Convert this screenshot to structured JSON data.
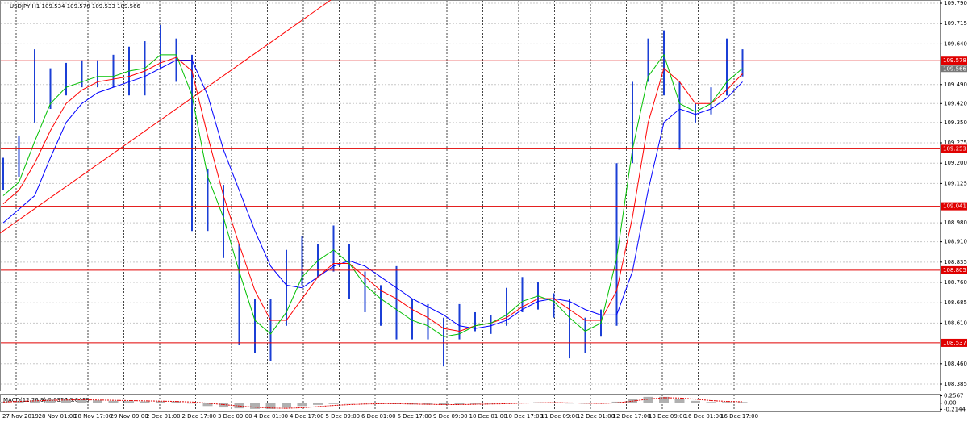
{
  "chart_data": {
    "type": "price",
    "title": "USDJPY,H1  109.534 109.570 109.533 109.566",
    "bar_color": "#1b3fd6",
    "ylim": [
      108.385,
      109.79
    ],
    "yticks": [
      {
        "value": 109.79,
        "label": "109.790"
      },
      109.715,
      {
        "value": 109.64,
        "label": "109.640"
      },
      {
        "value": 109.49,
        "label": "109.490"
      },
      {
        "value": 109.42,
        "label": "109.420"
      },
      {
        "value": 109.35,
        "label": "109.350"
      },
      109.275,
      {
        "value": 109.2,
        "label": "109.200"
      },
      109.125,
      {
        "value": 108.98,
        "label": "108.980"
      },
      {
        "value": 108.91,
        "label": "108.910"
      },
      108.835,
      {
        "value": 108.76,
        "label": "108.760"
      },
      108.685,
      {
        "value": 108.61,
        "label": "108.610"
      },
      {
        "value": 108.46,
        "label": "108.460"
      },
      108.385
    ],
    "grid": true,
    "time_labels": [
      "27 Nov 2019",
      "28 Nov 01:00",
      "28 Nov 17:00",
      "29 Nov 09:00",
      "2 Dec 01:00",
      "2 Dec 17:00",
      "3 Dec 09:00",
      "4 Dec 01:00",
      "4 Dec 17:00",
      "5 Dec 09:00",
      "6 Dec 01:00",
      "6 Dec 17:00",
      "9 Dec 09:00",
      "10 Dec 01:00",
      "10 Dec 17:00",
      "11 Dec 09:00",
      "12 Dec 01:00",
      "12 Dec 17:00",
      "13 Dec 09:00",
      "16 Dec 01:00",
      "16 Dec 17:00"
    ],
    "high": [
      109.22,
      109.3,
      109.62,
      109.55,
      109.57,
      109.58,
      109.58,
      109.6,
      109.63,
      109.65,
      109.71,
      109.66,
      109.6,
      109.18,
      109.12,
      108.9,
      108.7,
      108.7,
      108.88,
      108.93,
      108.9,
      108.97,
      108.9,
      108.8,
      108.75,
      108.82,
      108.7,
      108.68,
      108.63,
      108.68,
      108.65,
      108.64,
      108.74,
      108.78,
      108.76,
      108.72,
      108.7,
      108.63,
      108.66,
      109.2,
      109.5,
      109.66,
      109.69,
      109.5,
      109.42,
      109.48,
      109.66,
      109.62
    ],
    "low": [
      109.1,
      109.15,
      109.35,
      109.4,
      109.45,
      109.48,
      109.48,
      109.48,
      109.45,
      109.45,
      109.55,
      109.5,
      108.95,
      108.95,
      108.85,
      108.53,
      108.5,
      108.47,
      108.6,
      108.75,
      108.78,
      108.8,
      108.7,
      108.65,
      108.6,
      108.55,
      108.55,
      108.55,
      108.45,
      108.55,
      108.58,
      108.57,
      108.6,
      108.65,
      108.66,
      108.63,
      108.48,
      108.5,
      108.56,
      108.6,
      109.2,
      109.5,
      109.45,
      109.25,
      109.35,
      109.38,
      109.45,
      109.52
    ],
    "ma_fast": {
      "color": "#00c000",
      "values": [
        109.08,
        109.13,
        109.28,
        109.42,
        109.48,
        109.5,
        109.52,
        109.52,
        109.54,
        109.55,
        109.6,
        109.6,
        109.45,
        109.15,
        109.0,
        108.8,
        108.62,
        108.57,
        108.65,
        108.78,
        108.84,
        108.88,
        108.83,
        108.75,
        108.7,
        108.66,
        108.62,
        108.6,
        108.56,
        108.57,
        108.6,
        108.61,
        108.64,
        108.69,
        108.71,
        108.69,
        108.63,
        108.58,
        108.61,
        108.85,
        109.25,
        109.52,
        109.6,
        109.42,
        109.39,
        109.42,
        109.5,
        109.55
      ]
    },
    "ma_mid": {
      "color": "#ff0000",
      "values": [
        109.05,
        109.1,
        109.2,
        109.32,
        109.42,
        109.47,
        109.5,
        109.51,
        109.52,
        109.54,
        109.57,
        109.59,
        109.54,
        109.3,
        109.08,
        108.9,
        108.73,
        108.62,
        108.62,
        108.7,
        108.78,
        108.83,
        108.83,
        108.78,
        108.73,
        108.7,
        108.66,
        108.63,
        108.59,
        108.58,
        108.6,
        108.61,
        108.63,
        108.67,
        108.7,
        108.7,
        108.66,
        108.62,
        108.62,
        108.73,
        109.0,
        109.35,
        109.55,
        109.5,
        109.42,
        109.42,
        109.47,
        109.53
      ]
    },
    "ma_slow": {
      "color": "#0000ff",
      "values": [
        108.98,
        109.03,
        109.08,
        109.22,
        109.35,
        109.42,
        109.46,
        109.48,
        109.5,
        109.52,
        109.55,
        109.58,
        109.58,
        109.45,
        109.25,
        109.1,
        108.95,
        108.82,
        108.75,
        108.74,
        108.78,
        108.82,
        108.84,
        108.82,
        108.78,
        108.74,
        108.7,
        108.67,
        108.64,
        108.6,
        108.59,
        108.6,
        108.62,
        108.66,
        108.69,
        108.7,
        108.69,
        108.66,
        108.64,
        108.64,
        108.8,
        109.1,
        109.35,
        109.4,
        109.38,
        109.4,
        109.44,
        109.5
      ]
    },
    "level_color": "#e00000",
    "levels": [
      109.578,
      109.253,
      109.041,
      108.805,
      108.537
    ],
    "current_price": 109.566,
    "macd": {
      "title": "MACD(12,26,9) 0.0357 0.0468",
      "ylim": [
        -0.26,
        0.3
      ],
      "yticks": [
        0.2567,
        {
          "value": 0,
          "label": "0.00"
        },
        -0.2144
      ],
      "histogram": [
        0.05,
        0.08,
        0.1,
        0.12,
        0.13,
        0.12,
        0.1,
        0.08,
        0.07,
        0.06,
        0.06,
        0.06,
        0.0,
        -0.1,
        -0.15,
        -0.18,
        -0.2,
        -0.2,
        -0.16,
        -0.1,
        -0.06,
        -0.03,
        -0.01,
        -0.01,
        -0.02,
        -0.03,
        -0.04,
        -0.05,
        -0.06,
        -0.05,
        -0.03,
        -0.02,
        0.0,
        0.02,
        0.03,
        0.02,
        -0.01,
        -0.02,
        -0.01,
        0.05,
        0.15,
        0.22,
        0.22,
        0.15,
        0.08,
        0.04,
        0.04,
        0.04
      ],
      "signal": [
        0.04,
        0.06,
        0.08,
        0.1,
        0.11,
        0.12,
        0.11,
        0.1,
        0.09,
        0.08,
        0.07,
        0.06,
        0.04,
        0.0,
        -0.05,
        -0.1,
        -0.14,
        -0.17,
        -0.18,
        -0.16,
        -0.12,
        -0.08,
        -0.05,
        -0.03,
        -0.02,
        -0.02,
        -0.03,
        -0.04,
        -0.05,
        -0.05,
        -0.04,
        -0.03,
        -0.02,
        0.0,
        0.01,
        0.02,
        0.01,
        0.0,
        -0.01,
        0.01,
        0.07,
        0.14,
        0.19,
        0.18,
        0.14,
        0.09,
        0.06,
        0.05
      ],
      "histogram_color": "#b0b0b0",
      "signal_color": "#e00000"
    }
  }
}
